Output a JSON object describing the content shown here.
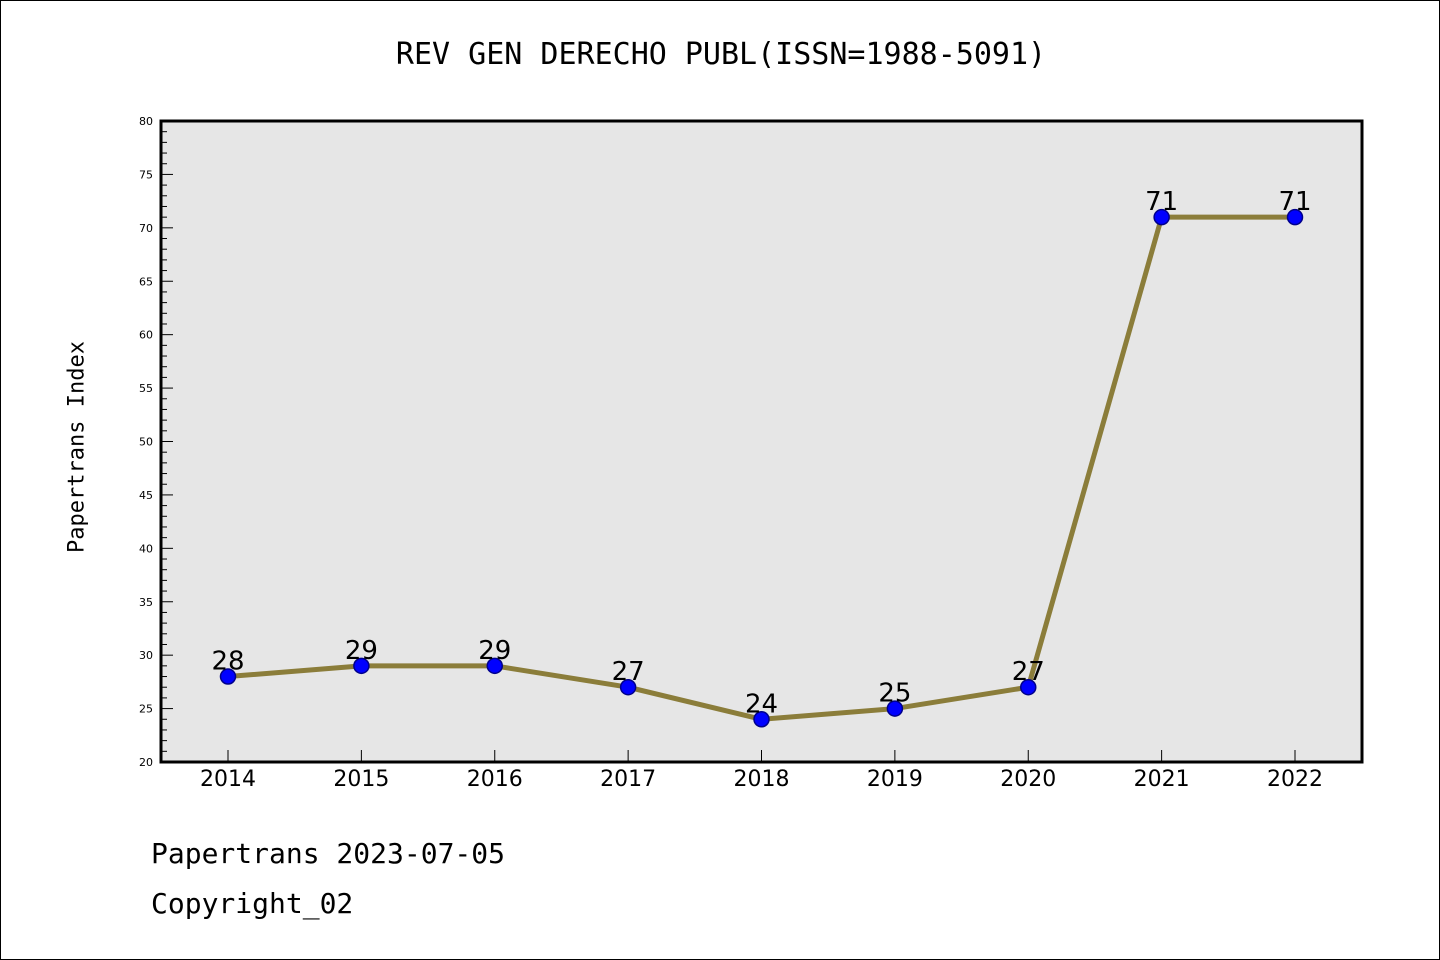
{
  "footer": {
    "line1": "Papertrans 2023-07-05",
    "line2": "Copyright_02"
  },
  "chart_data": {
    "type": "line",
    "title": "REV GEN DERECHO PUBL(ISSN=1988-5091)",
    "xlabel": "",
    "ylabel": "Papertrans Index",
    "categories": [
      "2014",
      "2015",
      "2016",
      "2017",
      "2018",
      "2019",
      "2020",
      "2021",
      "2022"
    ],
    "series": [
      {
        "values": [
          28,
          29,
          29,
          27,
          24,
          25,
          27,
          71,
          71
        ],
        "data_labels": [
          "28",
          "29",
          "29",
          "27",
          "24",
          "25",
          "27",
          "71",
          "71"
        ]
      }
    ],
    "ylim": [
      20,
      80
    ],
    "y_major_ticks": [
      20,
      25,
      30,
      35,
      40,
      45,
      50,
      55,
      60,
      65,
      70,
      75,
      80
    ],
    "y_minor_step": 1,
    "grid": false,
    "colors": {
      "line": "#8b7d3a",
      "marker_fill": "#0000ff",
      "marker_edge": "#00008b",
      "plot_background": "#e6e6e6"
    }
  }
}
